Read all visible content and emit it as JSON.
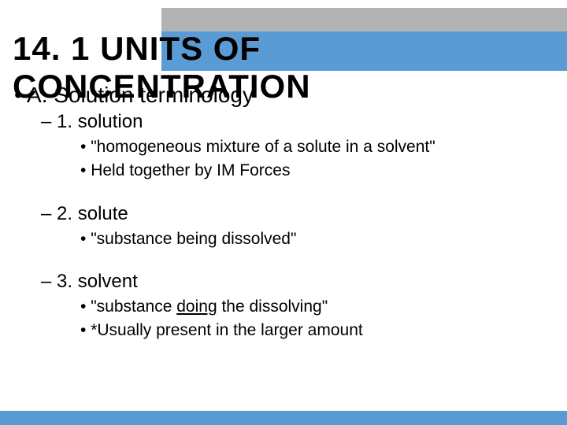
{
  "colors": {
    "accent": "#5b9bd5",
    "gray_bar": "#b3b3b3",
    "text": "#000000",
    "background": "#ffffff"
  },
  "typography": {
    "title_fontsize": 42,
    "level_a_fontsize": 28,
    "level_sub_fontsize": 24,
    "level_bullet_fontsize": 21,
    "font_family": "Trebuchet MS"
  },
  "title": "14. 1 UNITS OF CONCENTRATION",
  "sectionA": {
    "bullet": "•",
    "label": "A.  Solution terminology",
    "items": [
      {
        "dash": "–",
        "label": "1.  solution",
        "bullets": [
          "\"homogeneous mixture of a solute in a solvent\"",
          "Held together by IM Forces"
        ]
      },
      {
        "dash": "–",
        "label": "2.  solute",
        "bullets": [
          "\"substance being dissolved\""
        ]
      },
      {
        "dash": "–",
        "label": "3.  solvent",
        "bullets_pre": "\"substance ",
        "bullets_underline": "doing",
        "bullets_post": " the dissolving\"",
        "bullets_extra": "*Usually present in the larger amount"
      }
    ]
  }
}
